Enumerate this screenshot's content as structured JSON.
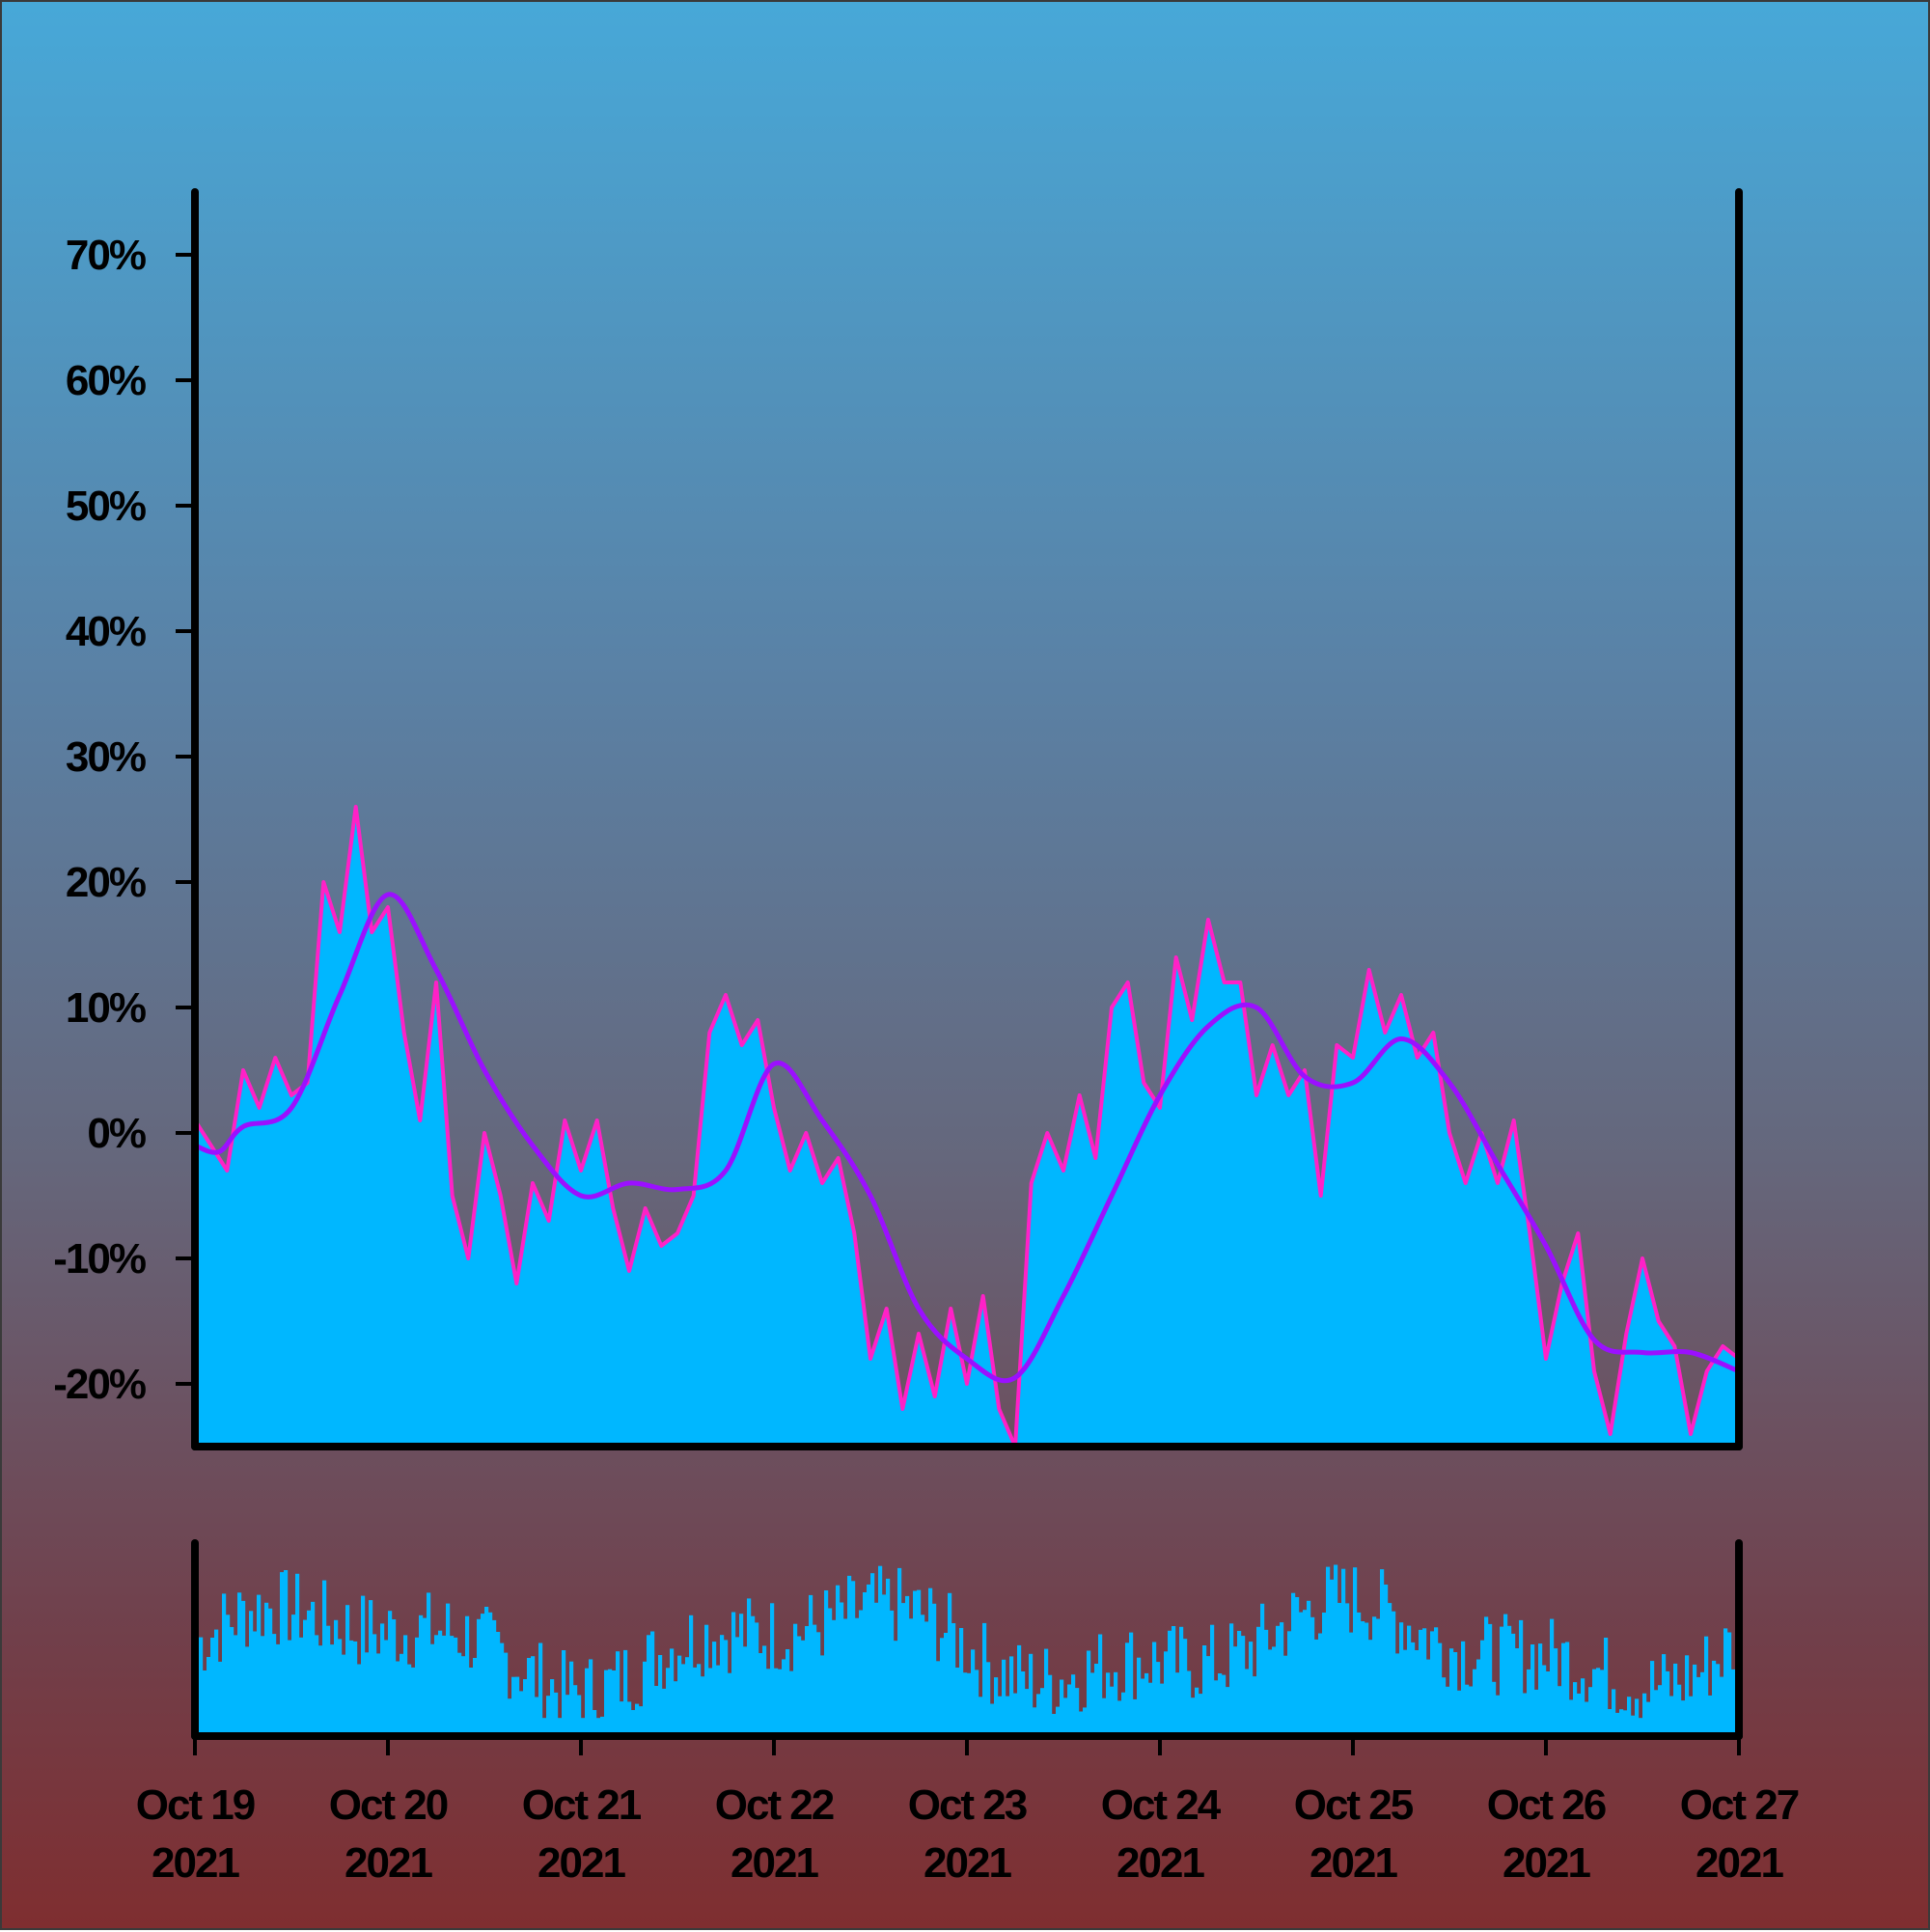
{
  "chart_data": {
    "type": "area",
    "x_start": "2021-10-19",
    "x_end": "2021-10-27",
    "x_ticks": [
      {
        "line1": "Oct 19",
        "line2": "2021"
      },
      {
        "line1": "Oct 20",
        "line2": "2021"
      },
      {
        "line1": "Oct 21",
        "line2": "2021"
      },
      {
        "line1": "Oct 22",
        "line2": "2021"
      },
      {
        "line1": "Oct 23",
        "line2": "2021"
      },
      {
        "line1": "Oct 24",
        "line2": "2021"
      },
      {
        "line1": "Oct 25",
        "line2": "2021"
      },
      {
        "line1": "Oct 26",
        "line2": "2021"
      },
      {
        "line1": "Oct 27",
        "line2": "2021"
      }
    ],
    "y_ticks": [
      {
        "value": -20,
        "label": "-20%"
      },
      {
        "value": -10,
        "label": "-10%"
      },
      {
        "value": 0,
        "label": "0%"
      },
      {
        "value": 10,
        "label": "10%"
      },
      {
        "value": 20,
        "label": "20%"
      },
      {
        "value": 30,
        "label": "30%"
      },
      {
        "value": 40,
        "label": "40%"
      },
      {
        "value": 50,
        "label": "50%"
      },
      {
        "value": 60,
        "label": "60%"
      },
      {
        "value": 70,
        "label": "70%"
      }
    ],
    "ylim": [
      -25,
      75
    ],
    "series": [
      {
        "role": "value_area",
        "color": "#ff21c7",
        "fill_color": "#00b7ff",
        "points": [
          [
            "2021-10-19 00:00",
            1
          ],
          [
            "2021-10-19 02:00",
            -1
          ],
          [
            "2021-10-19 04:00",
            -3
          ],
          [
            "2021-10-19 06:00",
            5
          ],
          [
            "2021-10-19 08:00",
            2
          ],
          [
            "2021-10-19 10:00",
            6
          ],
          [
            "2021-10-19 12:00",
            3
          ],
          [
            "2021-10-19 14:00",
            4
          ],
          [
            "2021-10-19 16:00",
            20
          ],
          [
            "2021-10-19 18:00",
            16
          ],
          [
            "2021-10-19 20:00",
            26
          ],
          [
            "2021-10-19 22:00",
            16
          ],
          [
            "2021-10-20 00:00",
            18
          ],
          [
            "2021-10-20 02:00",
            8
          ],
          [
            "2021-10-20 04:00",
            1
          ],
          [
            "2021-10-20 06:00",
            12
          ],
          [
            "2021-10-20 08:00",
            -5
          ],
          [
            "2021-10-20 10:00",
            -10
          ],
          [
            "2021-10-20 12:00",
            0
          ],
          [
            "2021-10-20 14:00",
            -5
          ],
          [
            "2021-10-20 16:00",
            -12
          ],
          [
            "2021-10-20 18:00",
            -4
          ],
          [
            "2021-10-20 20:00",
            -7
          ],
          [
            "2021-10-20 22:00",
            1
          ],
          [
            "2021-10-21 00:00",
            -3
          ],
          [
            "2021-10-21 02:00",
            1
          ],
          [
            "2021-10-21 04:00",
            -6
          ],
          [
            "2021-10-21 06:00",
            -11
          ],
          [
            "2021-10-21 08:00",
            -6
          ],
          [
            "2021-10-21 10:00",
            -9
          ],
          [
            "2021-10-21 12:00",
            -8
          ],
          [
            "2021-10-21 14:00",
            -5
          ],
          [
            "2021-10-21 16:00",
            8
          ],
          [
            "2021-10-21 18:00",
            11
          ],
          [
            "2021-10-21 20:00",
            7
          ],
          [
            "2021-10-21 22:00",
            9
          ],
          [
            "2021-10-22 00:00",
            2
          ],
          [
            "2021-10-22 02:00",
            -3
          ],
          [
            "2021-10-22 04:00",
            0
          ],
          [
            "2021-10-22 06:00",
            -4
          ],
          [
            "2021-10-22 08:00",
            -2
          ],
          [
            "2021-10-22 10:00",
            -8
          ],
          [
            "2021-10-22 12:00",
            -18
          ],
          [
            "2021-10-22 14:00",
            -14
          ],
          [
            "2021-10-22 16:00",
            -22
          ],
          [
            "2021-10-22 18:00",
            -16
          ],
          [
            "2021-10-22 20:00",
            -21
          ],
          [
            "2021-10-22 22:00",
            -14
          ],
          [
            "2021-10-23 00:00",
            -20
          ],
          [
            "2021-10-23 02:00",
            -13
          ],
          [
            "2021-10-23 04:00",
            -22
          ],
          [
            "2021-10-23 06:00",
            -25
          ],
          [
            "2021-10-23 08:00",
            -4
          ],
          [
            "2021-10-23 10:00",
            0
          ],
          [
            "2021-10-23 12:00",
            -3
          ],
          [
            "2021-10-23 14:00",
            3
          ],
          [
            "2021-10-23 16:00",
            -2
          ],
          [
            "2021-10-23 18:00",
            10
          ],
          [
            "2021-10-23 20:00",
            12
          ],
          [
            "2021-10-23 22:00",
            4
          ],
          [
            "2021-10-24 00:00",
            2
          ],
          [
            "2021-10-24 02:00",
            14
          ],
          [
            "2021-10-24 04:00",
            9
          ],
          [
            "2021-10-24 06:00",
            17
          ],
          [
            "2021-10-24 08:00",
            12
          ],
          [
            "2021-10-24 10:00",
            12
          ],
          [
            "2021-10-24 12:00",
            3
          ],
          [
            "2021-10-24 14:00",
            7
          ],
          [
            "2021-10-24 16:00",
            3
          ],
          [
            "2021-10-24 18:00",
            5
          ],
          [
            "2021-10-24 20:00",
            -5
          ],
          [
            "2021-10-24 22:00",
            7
          ],
          [
            "2021-10-25 00:00",
            6
          ],
          [
            "2021-10-25 02:00",
            13
          ],
          [
            "2021-10-25 04:00",
            8
          ],
          [
            "2021-10-25 06:00",
            11
          ],
          [
            "2021-10-25 08:00",
            6
          ],
          [
            "2021-10-25 10:00",
            8
          ],
          [
            "2021-10-25 12:00",
            0
          ],
          [
            "2021-10-25 14:00",
            -4
          ],
          [
            "2021-10-25 16:00",
            0
          ],
          [
            "2021-10-25 18:00",
            -4
          ],
          [
            "2021-10-25 20:00",
            1
          ],
          [
            "2021-10-25 22:00",
            -8
          ],
          [
            "2021-10-26 00:00",
            -18
          ],
          [
            "2021-10-26 02:00",
            -12
          ],
          [
            "2021-10-26 04:00",
            -8
          ],
          [
            "2021-10-26 06:00",
            -19
          ],
          [
            "2021-10-26 08:00",
            -24
          ],
          [
            "2021-10-26 10:00",
            -16
          ],
          [
            "2021-10-26 12:00",
            -10
          ],
          [
            "2021-10-26 14:00",
            -15
          ],
          [
            "2021-10-26 16:00",
            -17
          ],
          [
            "2021-10-26 18:00",
            -24
          ],
          [
            "2021-10-26 20:00",
            -19
          ],
          [
            "2021-10-26 22:00",
            -17
          ],
          [
            "2021-10-27 00:00",
            -18
          ]
        ]
      },
      {
        "role": "smoothed_line",
        "color": "#9b10ff",
        "points": [
          [
            "2021-10-19 00:00",
            -1
          ],
          [
            "2021-10-19 03:00",
            -1.5
          ],
          [
            "2021-10-19 06:00",
            0.5
          ],
          [
            "2021-10-19 12:00",
            2
          ],
          [
            "2021-10-19 18:00",
            11
          ],
          [
            "2021-10-20 00:00",
            19
          ],
          [
            "2021-10-20 06:00",
            13
          ],
          [
            "2021-10-20 12:00",
            5
          ],
          [
            "2021-10-20 18:00",
            -1
          ],
          [
            "2021-10-21 00:00",
            -5
          ],
          [
            "2021-10-21 06:00",
            -4
          ],
          [
            "2021-10-21 12:00",
            -4.5
          ],
          [
            "2021-10-21 18:00",
            -3
          ],
          [
            "2021-10-22 00:00",
            5.5
          ],
          [
            "2021-10-22 06:00",
            1
          ],
          [
            "2021-10-22 12:00",
            -5
          ],
          [
            "2021-10-22 18:00",
            -14
          ],
          [
            "2021-10-23 00:00",
            -18
          ],
          [
            "2021-10-23 06:00",
            -19.5
          ],
          [
            "2021-10-23 12:00",
            -13
          ],
          [
            "2021-10-23 18:00",
            -5
          ],
          [
            "2021-10-24 00:00",
            3
          ],
          [
            "2021-10-24 06:00",
            8.5
          ],
          [
            "2021-10-24 12:00",
            10
          ],
          [
            "2021-10-24 18:00",
            4.5
          ],
          [
            "2021-10-25 00:00",
            4
          ],
          [
            "2021-10-25 06:00",
            7.5
          ],
          [
            "2021-10-25 12:00",
            4
          ],
          [
            "2021-10-25 18:00",
            -2.5
          ],
          [
            "2021-10-26 00:00",
            -9
          ],
          [
            "2021-10-26 06:00",
            -16.5
          ],
          [
            "2021-10-26 12:00",
            -17.5
          ],
          [
            "2021-10-26 18:00",
            -17.5
          ],
          [
            "2021-10-27 00:00",
            -19
          ]
        ]
      }
    ],
    "volume": {
      "type": "bar",
      "color": "#00b7ff",
      "count": 400,
      "seed": 7
    }
  }
}
